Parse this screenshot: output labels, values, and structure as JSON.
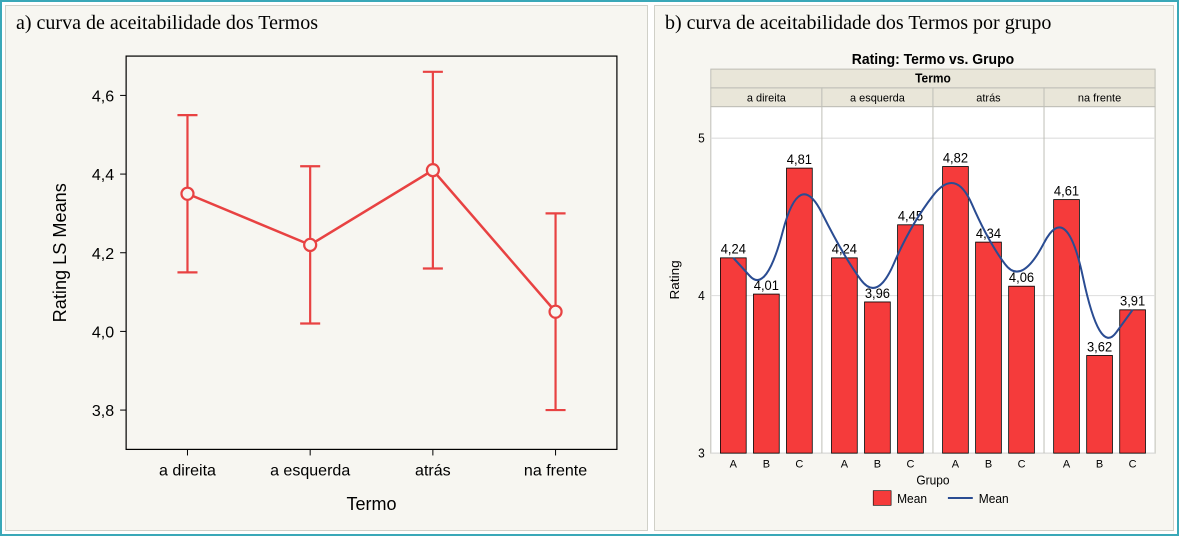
{
  "panel_a": {
    "title": "a) curva de aceitabilidade dos Termos",
    "chart": {
      "type": "line-errorbar",
      "x_label": "Termo",
      "y_label": "Rating LS Means",
      "y_ticks": [
        3.8,
        4.0,
        4.2,
        4.4,
        4.6
      ],
      "ylim": [
        3.7,
        4.7
      ],
      "categories": [
        "a direita",
        "a esquerda",
        "atrás",
        "na frente"
      ],
      "means": [
        4.35,
        4.22,
        4.41,
        4.05
      ],
      "err_low": [
        4.15,
        4.02,
        4.16,
        3.8
      ],
      "err_high": [
        4.55,
        4.42,
        4.66,
        4.3
      ],
      "line_color": "#e84242",
      "marker_size": 6,
      "error_cap": 10,
      "background": "#f7f6f1",
      "plot_border": "#000000",
      "tick_font_size": 16,
      "label_font_size": 18
    }
  },
  "panel_b": {
    "title": "b) curva de aceitabilidade dos Termos por grupo",
    "chart": {
      "type": "grouped-bar-line",
      "main_title": "Rating: Termo vs. Grupo",
      "strip_label": "Termo",
      "x_label": "Grupo",
      "y_label": "Rating",
      "ylim": [
        3.0,
        5.2
      ],
      "y_ticks": [
        3,
        4,
        5
      ],
      "facets": [
        "a direita",
        "a esquerda",
        "atrás",
        "na frente"
      ],
      "groups": [
        "A",
        "B",
        "C"
      ],
      "values": [
        [
          4.24,
          4.01,
          4.81
        ],
        [
          4.24,
          3.96,
          4.45
        ],
        [
          4.82,
          4.34,
          4.06
        ],
        [
          4.61,
          3.62,
          3.91
        ]
      ],
      "bar_color": "#f53b3b",
      "bar_outline": "#000000",
      "line_color": "#2a4c92",
      "strip_bg": "#e9e6d9",
      "plot_bg": "#ffffff",
      "grid_color": "#dddddd",
      "panel_border": "#bfbfb7",
      "tick_font_size": 12,
      "value_font_size": 13,
      "legend": {
        "bar_label": "Mean",
        "line_label": "Mean"
      }
    }
  }
}
